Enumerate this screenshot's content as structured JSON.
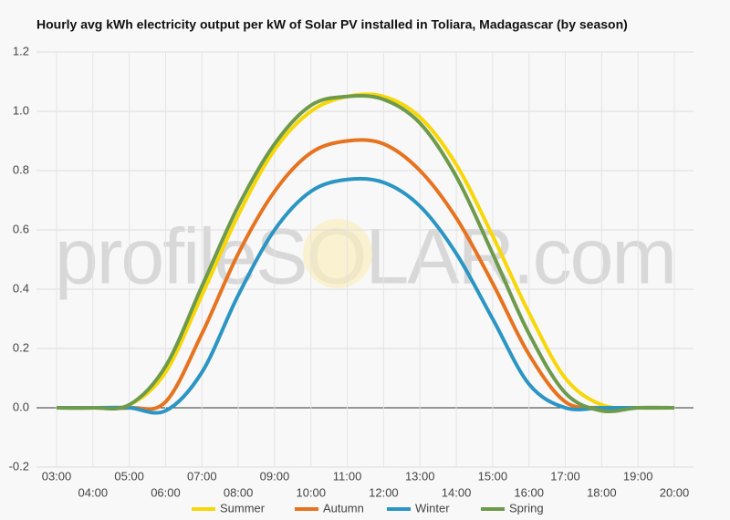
{
  "chart_data": {
    "type": "line",
    "title": "Hourly avg kWh electricity output per kW of Solar PV installed in Toliara, Madagascar (by season)",
    "watermark": "profileSOLAR.com",
    "categories": [
      "03:00",
      "04:00",
      "05:00",
      "06:00",
      "07:00",
      "08:00",
      "09:00",
      "10:00",
      "11:00",
      "12:00",
      "13:00",
      "14:00",
      "15:00",
      "16:00",
      "17:00",
      "18:00",
      "19:00",
      "20:00"
    ],
    "series": [
      {
        "name": "Summer",
        "color": "#f7d708",
        "values": [
          0,
          0,
          0.01,
          0.12,
          0.38,
          0.65,
          0.87,
          1.0,
          1.05,
          1.05,
          0.98,
          0.82,
          0.58,
          0.32,
          0.1,
          0.01,
          0,
          0
        ]
      },
      {
        "name": "Autumn",
        "color": "#e6731f",
        "values": [
          0,
          0,
          0,
          0.02,
          0.25,
          0.52,
          0.73,
          0.86,
          0.9,
          0.89,
          0.8,
          0.64,
          0.42,
          0.18,
          0.02,
          0,
          0,
          0
        ]
      },
      {
        "name": "Winter",
        "color": "#2b95c3",
        "values": [
          0,
          0,
          0,
          -0.01,
          0.12,
          0.38,
          0.6,
          0.73,
          0.77,
          0.76,
          0.68,
          0.52,
          0.3,
          0.08,
          0,
          0,
          0,
          0
        ]
      },
      {
        "name": "Spring",
        "color": "#6e9a4c",
        "values": [
          0,
          0,
          0.01,
          0.14,
          0.41,
          0.68,
          0.89,
          1.02,
          1.05,
          1.04,
          0.96,
          0.78,
          0.52,
          0.25,
          0.05,
          -0.01,
          0,
          0
        ]
      }
    ],
    "ylim": [
      -0.2,
      1.2
    ],
    "yticks": [
      -0.2,
      {
        "value": 0,
        "label": "0.0"
      },
      0.2,
      0.4,
      0.6,
      0.8,
      {
        "value": 1,
        "label": "1.0"
      },
      1.2
    ],
    "grid": true,
    "legend": "bottom"
  }
}
